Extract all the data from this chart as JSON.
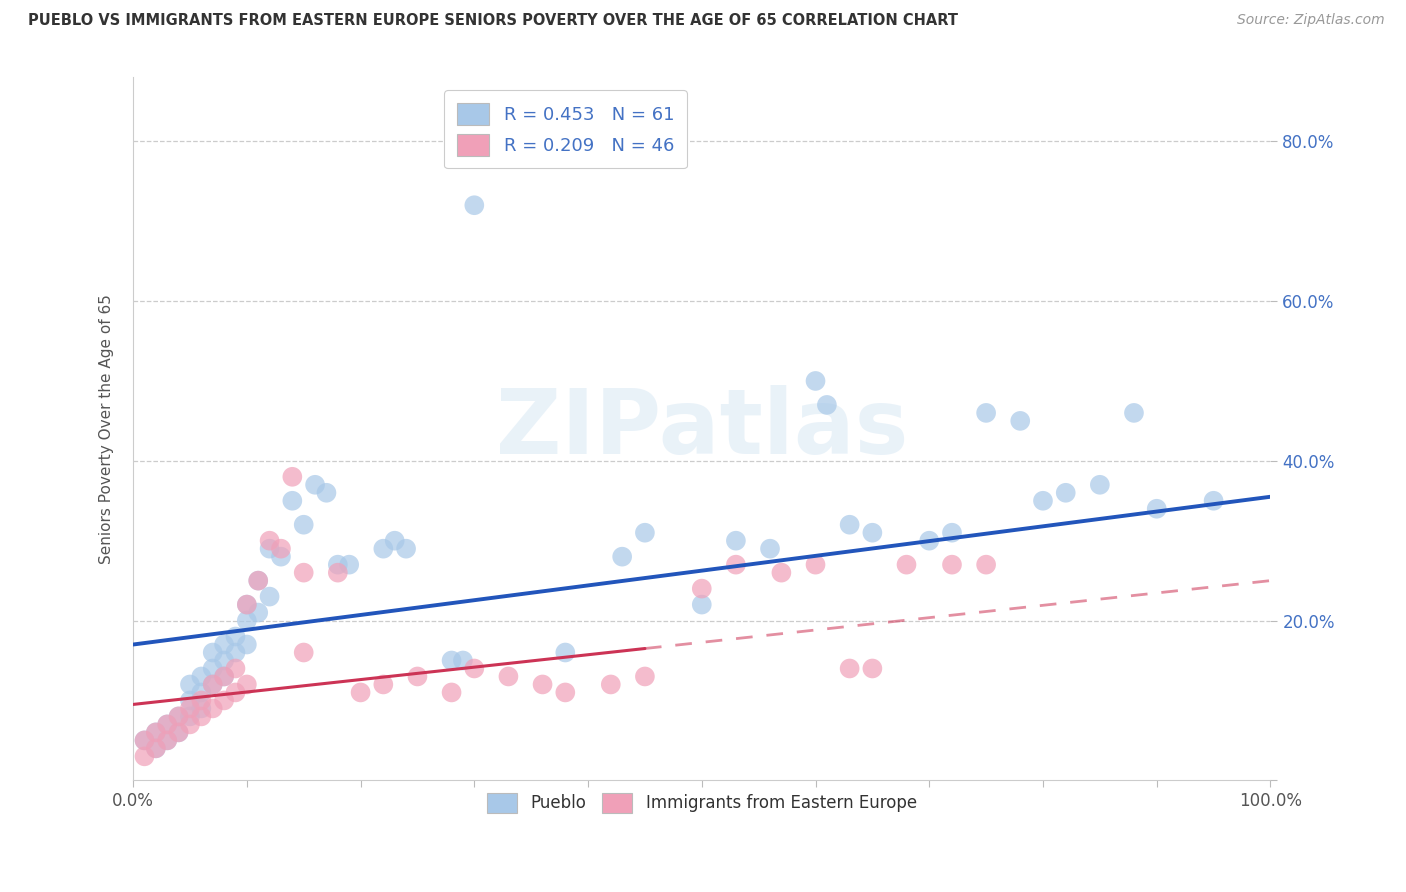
{
  "title": "PUEBLO VS IMMIGRANTS FROM EASTERN EUROPE SENIORS POVERTY OVER THE AGE OF 65 CORRELATION CHART",
  "source": "Source: ZipAtlas.com",
  "ylabel": "Seniors Poverty Over the Age of 65",
  "xlim": [
    0.0,
    1.0
  ],
  "ylim": [
    0.0,
    0.88
  ],
  "ytick_positions": [
    0.0,
    0.2,
    0.4,
    0.6,
    0.8
  ],
  "ytick_labels_right": [
    "",
    "20.0%",
    "40.0%",
    "60.0%",
    "80.0%"
  ],
  "xtick_positions": [
    0.0,
    0.1,
    0.2,
    0.3,
    0.4,
    0.5,
    0.6,
    0.7,
    0.8,
    0.9,
    1.0
  ],
  "xtick_label_left": "0.0%",
  "xtick_label_right": "100.0%",
  "legend_r1": "R = 0.453",
  "legend_n1": "N = 61",
  "legend_r2": "R = 0.209",
  "legend_n2": "N = 46",
  "pueblo_color": "#a8c8e8",
  "immigrants_color": "#f0a0b8",
  "pueblo_line_color": "#2255bb",
  "immigrants_line_color_solid": "#cc3355",
  "immigrants_line_color_dash": "#cc3355",
  "watermark": "ZIPatlas",
  "pueblo_scatter_x": [
    0.01,
    0.02,
    0.02,
    0.03,
    0.03,
    0.04,
    0.04,
    0.05,
    0.05,
    0.05,
    0.06,
    0.06,
    0.06,
    0.07,
    0.07,
    0.07,
    0.08,
    0.08,
    0.08,
    0.09,
    0.09,
    0.1,
    0.1,
    0.1,
    0.11,
    0.11,
    0.12,
    0.12,
    0.13,
    0.14,
    0.15,
    0.16,
    0.17,
    0.18,
    0.19,
    0.22,
    0.23,
    0.24,
    0.28,
    0.29,
    0.3,
    0.38,
    0.43,
    0.45,
    0.5,
    0.53,
    0.56,
    0.6,
    0.61,
    0.63,
    0.65,
    0.7,
    0.72,
    0.75,
    0.78,
    0.8,
    0.82,
    0.85,
    0.88,
    0.9,
    0.95
  ],
  "pueblo_scatter_y": [
    0.05,
    0.06,
    0.04,
    0.07,
    0.05,
    0.08,
    0.06,
    0.1,
    0.08,
    0.12,
    0.11,
    0.09,
    0.13,
    0.14,
    0.12,
    0.16,
    0.15,
    0.13,
    0.17,
    0.18,
    0.16,
    0.2,
    0.17,
    0.22,
    0.21,
    0.25,
    0.23,
    0.29,
    0.28,
    0.35,
    0.32,
    0.37,
    0.36,
    0.27,
    0.27,
    0.29,
    0.3,
    0.29,
    0.15,
    0.15,
    0.72,
    0.16,
    0.28,
    0.31,
    0.22,
    0.3,
    0.29,
    0.5,
    0.47,
    0.32,
    0.31,
    0.3,
    0.31,
    0.46,
    0.45,
    0.35,
    0.36,
    0.37,
    0.46,
    0.34,
    0.35
  ],
  "immigrants_scatter_x": [
    0.01,
    0.01,
    0.02,
    0.02,
    0.03,
    0.03,
    0.04,
    0.04,
    0.05,
    0.05,
    0.06,
    0.06,
    0.07,
    0.07,
    0.08,
    0.08,
    0.09,
    0.09,
    0.1,
    0.1,
    0.11,
    0.12,
    0.13,
    0.14,
    0.15,
    0.15,
    0.18,
    0.2,
    0.22,
    0.25,
    0.28,
    0.3,
    0.33,
    0.36,
    0.38,
    0.42,
    0.45,
    0.5,
    0.53,
    0.57,
    0.6,
    0.63,
    0.65,
    0.68,
    0.72,
    0.75
  ],
  "immigrants_scatter_y": [
    0.03,
    0.05,
    0.04,
    0.06,
    0.05,
    0.07,
    0.06,
    0.08,
    0.07,
    0.09,
    0.08,
    0.1,
    0.09,
    0.12,
    0.1,
    0.13,
    0.11,
    0.14,
    0.12,
    0.22,
    0.25,
    0.3,
    0.29,
    0.38,
    0.16,
    0.26,
    0.26,
    0.11,
    0.12,
    0.13,
    0.11,
    0.14,
    0.13,
    0.12,
    0.11,
    0.12,
    0.13,
    0.24,
    0.27,
    0.26,
    0.27,
    0.14,
    0.14,
    0.27,
    0.27,
    0.27
  ],
  "pueblo_line_x0": 0.0,
  "pueblo_line_y0": 0.17,
  "pueblo_line_x1": 1.0,
  "pueblo_line_y1": 0.355,
  "immigrants_line_solid_x0": 0.0,
  "immigrants_line_solid_y0": 0.095,
  "immigrants_line_solid_x1": 0.45,
  "immigrants_line_solid_y1": 0.165,
  "immigrants_line_dash_x0": 0.45,
  "immigrants_line_dash_y0": 0.165,
  "immigrants_line_dash_x1": 1.0,
  "immigrants_line_dash_y1": 0.25
}
